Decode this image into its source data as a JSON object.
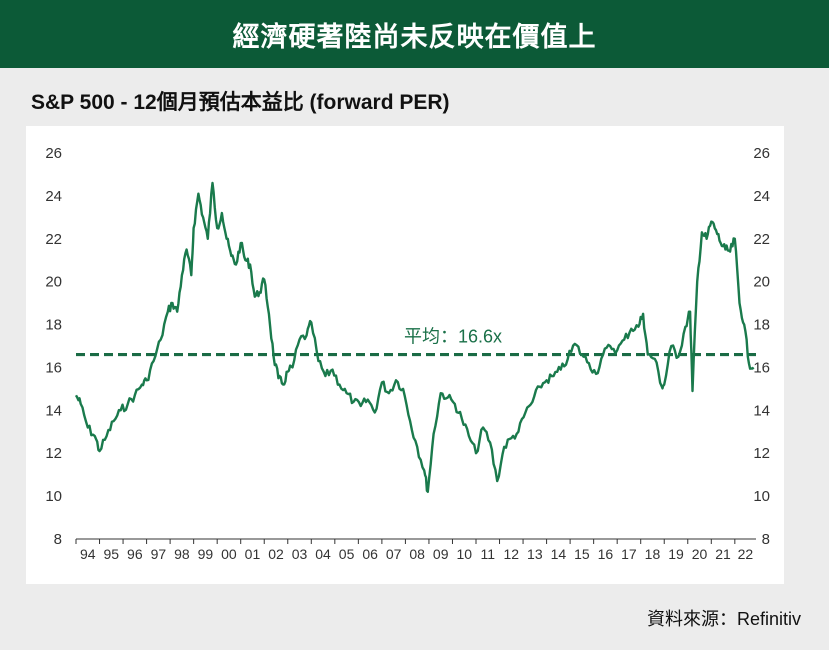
{
  "banner": {
    "title": "經濟硬著陸尚未反映在價值上"
  },
  "source": {
    "text": "資料來源：Refinitiv"
  },
  "colors": {
    "brand_green": "#0c5a37",
    "line": "#1a7a4c",
    "avg_line": "#1a6b45"
  },
  "chart_data": {
    "type": "line",
    "title": "S&P 500 - 12個月預估本益比 (forward PER)",
    "ylim": [
      8,
      26
    ],
    "yticks": [
      "26",
      "24",
      "22",
      "20",
      "18",
      "16",
      "14",
      "12",
      "10",
      "8"
    ],
    "xlim": [
      1994,
      2022.9
    ],
    "xtick_labels": [
      "94",
      "95",
      "96",
      "97",
      "98",
      "99",
      "00",
      "01",
      "02",
      "03",
      "04",
      "05",
      "06",
      "07",
      "08",
      "09",
      "10",
      "11",
      "12",
      "13",
      "14",
      "15",
      "16",
      "17",
      "18",
      "19",
      "20",
      "21",
      "22"
    ],
    "average": {
      "value": 16.6,
      "label": "平均：16.6x"
    },
    "grid": false,
    "series": [
      {
        "x": [
          1994.0,
          1994.2,
          1994.5,
          1994.8,
          1995.0,
          1995.3,
          1995.6,
          1995.9,
          1996.2,
          1996.5,
          1996.8,
          1997.0,
          1997.3,
          1997.6,
          1997.9,
          1998.1,
          1998.3,
          1998.5,
          1998.7,
          1998.9,
          1999.0,
          1999.2,
          1999.4,
          1999.6,
          1999.8,
          2000.0,
          2000.2,
          2000.4,
          2000.6,
          2000.8,
          2001.0,
          2001.2,
          2001.4,
          2001.6,
          2001.8,
          2002.0,
          2002.2,
          2002.4,
          2002.6,
          2002.8,
          2003.0,
          2003.2,
          2003.5,
          2003.8,
          2004.0,
          2004.3,
          2004.6,
          2004.9,
          2005.2,
          2005.5,
          2005.8,
          2006.1,
          2006.4,
          2006.7,
          2007.0,
          2007.3,
          2007.6,
          2007.9,
          2008.2,
          2008.5,
          2008.8,
          2008.95,
          2009.2,
          2009.5,
          2009.8,
          2010.1,
          2010.4,
          2010.7,
          2011.0,
          2011.3,
          2011.6,
          2011.9,
          2012.2,
          2012.5,
          2012.8,
          2013.1,
          2013.4,
          2013.7,
          2014.0,
          2014.3,
          2014.6,
          2014.9,
          2015.2,
          2015.5,
          2015.8,
          2016.1,
          2016.4,
          2016.7,
          2017.0,
          2017.3,
          2017.6,
          2017.9,
          2018.1,
          2018.3,
          2018.6,
          2018.9,
          2019.0,
          2019.3,
          2019.6,
          2019.9,
          2020.1,
          2020.2,
          2020.4,
          2020.6,
          2020.8,
          2021.0,
          2021.2,
          2021.4,
          2021.6,
          2021.8,
          2022.0,
          2022.2,
          2022.4,
          2022.6,
          2022.8
        ],
        "values": [
          14.7,
          14.3,
          13.2,
          12.8,
          12.1,
          12.8,
          13.5,
          14.0,
          14.3,
          14.7,
          15.2,
          15.4,
          16.3,
          17.3,
          18.6,
          19.0,
          18.6,
          20.3,
          21.5,
          20.3,
          22.5,
          24.1,
          23.0,
          22.0,
          24.6,
          22.5,
          23.2,
          22.0,
          21.2,
          20.8,
          21.8,
          21.0,
          20.8,
          19.3,
          19.5,
          20.1,
          18.5,
          16.5,
          15.5,
          15.2,
          15.8,
          16.0,
          17.3,
          17.5,
          18.1,
          16.3,
          15.6,
          15.9,
          15.2,
          14.8,
          14.4,
          14.2,
          14.5,
          13.9,
          15.3,
          14.8,
          15.4,
          15.0,
          13.5,
          12.3,
          11.2,
          10.2,
          12.9,
          14.8,
          14.6,
          14.3,
          13.6,
          12.8,
          12.0,
          13.2,
          12.5,
          10.7,
          12.3,
          12.7,
          13.0,
          13.9,
          14.4,
          15.1,
          15.4,
          15.6,
          15.9,
          16.4,
          17.1,
          16.6,
          16.2,
          15.7,
          16.6,
          17.0,
          16.8,
          17.3,
          17.8,
          17.9,
          18.5,
          16.6,
          16.4,
          15.1,
          15.2,
          17.0,
          16.5,
          17.9,
          18.6,
          14.9,
          20.0,
          22.3,
          22.0,
          22.8,
          22.4,
          21.8,
          21.5,
          21.4,
          22.0,
          19.0,
          18.0,
          16.2,
          16.0
        ]
      }
    ]
  }
}
